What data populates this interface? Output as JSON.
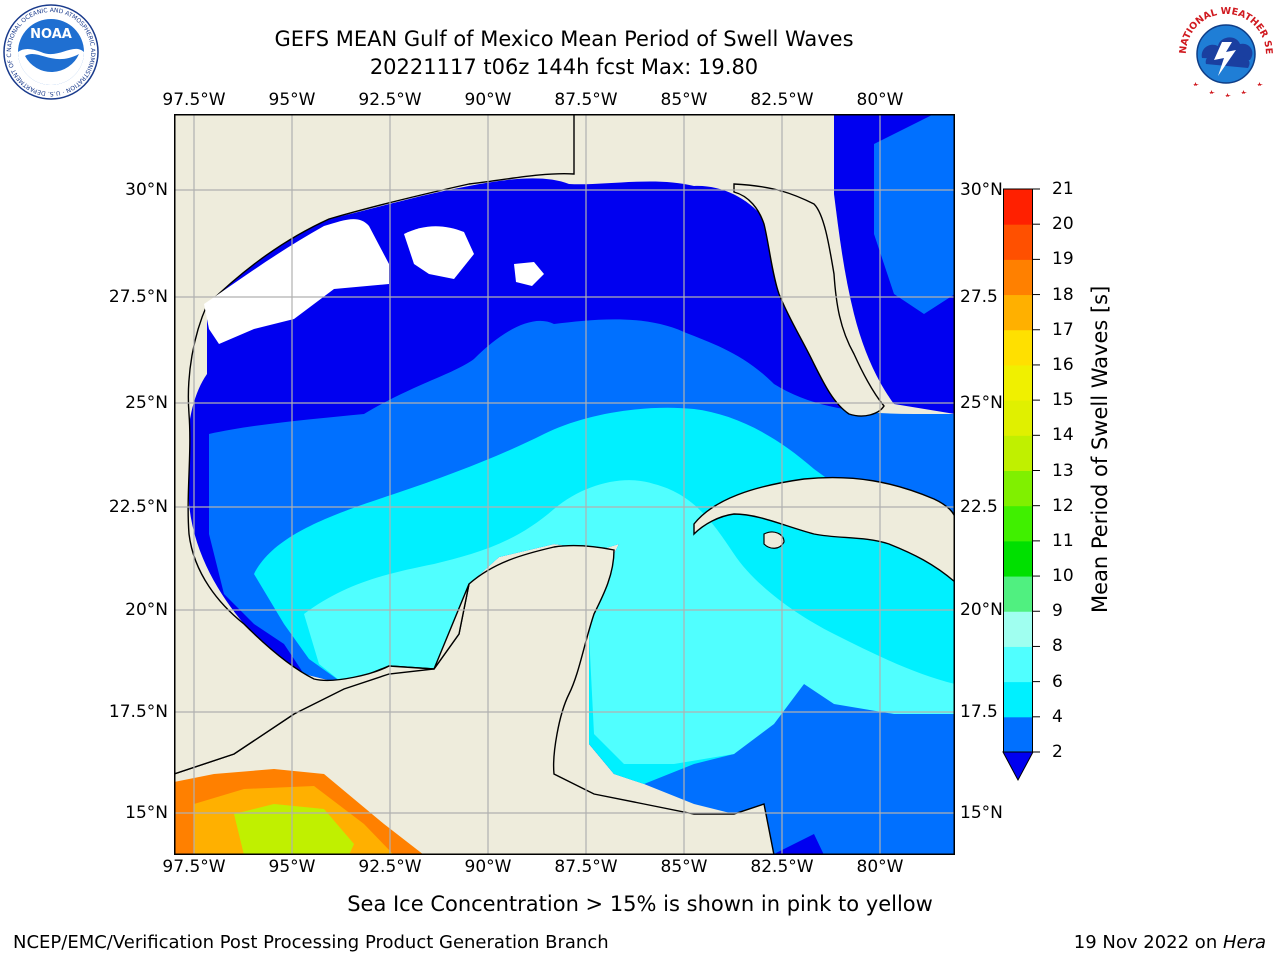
{
  "header": {
    "title_line1": "GEFS MEAN Gulf of Mexico Mean Period of Swell Waves",
    "title_line2": "20221117 t06z 144h fcst   Max: 19.80"
  },
  "logos": {
    "noaa_text": "NOAA",
    "noaa_ring_text": "NATIONAL OCEANIC AND ATMOSPHERIC ADMINISTRATION · U.S. DEPARTMENT OF COMMERCE",
    "nws_ring_text": "NATIONAL WEATHER SERVICE"
  },
  "map": {
    "lon_labels": [
      "97.5°W",
      "95°W",
      "92.5°W",
      "90°W",
      "87.5°W",
      "85°W",
      "82.5°W",
      "80°W"
    ],
    "lat_labels": [
      "30°N",
      "27.5°N",
      "25°N",
      "22.5°N",
      "20°N",
      "17.5°N",
      "15°N"
    ],
    "lat_labels_right": [
      "30°N",
      "27.5",
      "25°N",
      "22.5",
      "20°N",
      "17.5",
      "15°N"
    ],
    "lon_values": [
      -97.5,
      -95,
      -92.5,
      -90,
      -87.5,
      -85,
      -82.5,
      -80
    ],
    "lat_values": [
      30,
      27.5,
      25,
      22.5,
      20,
      17.5,
      15
    ],
    "extent": {
      "lon_min": -98.0,
      "lon_max": -78.0,
      "lat_min": 14.0,
      "lat_max": 32.0
    },
    "colors": {
      "land": "#eeecdc",
      "no_data": "#ffffff",
      "grid": "#b0b0b0",
      "coast": "#000000"
    }
  },
  "colorbar": {
    "title": "Mean Period of Swell Waves [s]",
    "tick_labels": [
      "2",
      "4",
      "6",
      "8",
      "9",
      "10",
      "11",
      "12",
      "13",
      "14",
      "15",
      "16",
      "17",
      "18",
      "19",
      "20",
      "21"
    ],
    "levels": [
      2,
      4,
      6,
      8,
      9,
      10,
      11,
      12,
      13,
      14,
      15,
      16,
      17,
      18,
      19,
      20,
      21
    ],
    "under_color": "#0000f0",
    "colors": [
      "#0070ff",
      "#00f0ff",
      "#50ffff",
      "#a0fff0",
      "#50f080",
      "#00e000",
      "#40f000",
      "#80f000",
      "#c0f000",
      "#e0f000",
      "#f0f000",
      "#ffe000",
      "#ffb000",
      "#ff8000",
      "#ff5000",
      "#ff2000"
    ]
  },
  "caption": "Sea Ice Concentration > 15% is shown in pink to yellow",
  "footer": {
    "left": "NCEP/EMC/Verification Post Processing Product Generation Branch",
    "right_date": "19 Nov 2022 on ",
    "right_host": "Hera"
  }
}
